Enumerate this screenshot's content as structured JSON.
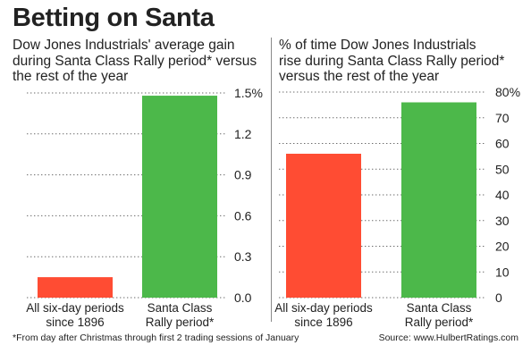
{
  "title": "Betting on Santa",
  "footnote": "*From day after Christmas through first 2 trading sessions of January",
  "source": "Source: www.HulbertRatings.com",
  "colors": {
    "base_bar": "#ff4c33",
    "santa_bar": "#4cb84a",
    "grid": "#6a6a6a",
    "text": "#222222"
  },
  "chart_data": [
    {
      "type": "bar",
      "subtitle_lines": [
        "Dow Jones Industrials' average gain",
        "during Santa Class Rally period* versus",
        "the rest of the year"
      ],
      "categories": [
        [
          "All six-day periods",
          "since 1896"
        ],
        [
          "Santa Class",
          "Rally period*"
        ]
      ],
      "values": [
        0.15,
        1.48
      ],
      "ylim": [
        0,
        1.5
      ],
      "ytick_values": [
        0,
        0.3,
        0.6,
        0.9,
        1.2,
        1.5
      ],
      "ytick_labels": [
        "0.0",
        "0.3",
        "0.6",
        "0.9",
        "1.2",
        "1.5%"
      ],
      "grid": true,
      "bar_colors": [
        "#ff4c33",
        "#4cb84a"
      ]
    },
    {
      "type": "bar",
      "subtitle_lines": [
        "% of time Dow Jones Industrials",
        "rise during Santa Class Rally period*",
        "versus the rest of the year"
      ],
      "categories": [
        [
          "All six-day periods",
          "since 1896"
        ],
        [
          "Santa Class",
          "Rally period*"
        ]
      ],
      "values": [
        56,
        76
      ],
      "ylim": [
        0,
        80
      ],
      "ytick_values": [
        0,
        10,
        20,
        30,
        40,
        50,
        60,
        70,
        80
      ],
      "ytick_labels": [
        "0",
        "10",
        "20",
        "30",
        "40",
        "50",
        "60",
        "70",
        "80%"
      ],
      "grid": true,
      "bar_colors": [
        "#ff4c33",
        "#4cb84a"
      ]
    }
  ]
}
